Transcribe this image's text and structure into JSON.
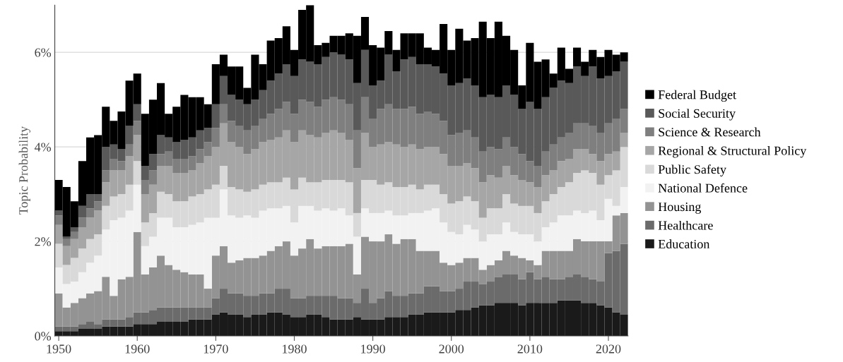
{
  "chart_data": {
    "type": "bar",
    "stacked": true,
    "ylabel": "Topic Probability",
    "legend": "right",
    "grid": "y",
    "x": [
      1950,
      1951,
      1952,
      1953,
      1954,
      1955,
      1956,
      1957,
      1958,
      1959,
      1960,
      1961,
      1962,
      1963,
      1964,
      1965,
      1966,
      1967,
      1968,
      1969,
      1970,
      1971,
      1972,
      1973,
      1974,
      1975,
      1976,
      1977,
      1978,
      1979,
      1980,
      1981,
      1982,
      1983,
      1984,
      1985,
      1986,
      1987,
      1988,
      1989,
      1990,
      1991,
      1992,
      1993,
      1994,
      1995,
      1996,
      1997,
      1998,
      1999,
      2000,
      2001,
      2002,
      2003,
      2004,
      2005,
      2006,
      2007,
      2008,
      2009,
      2010,
      2011,
      2012,
      2013,
      2014,
      2015,
      2016,
      2017,
      2018,
      2019,
      2020,
      2021,
      2022
    ],
    "xlim": [
      1949.5,
      2022.5
    ],
    "xticks": [
      1950,
      1960,
      1970,
      1980,
      1990,
      2000,
      2010,
      2020
    ],
    "ylim": [
      0,
      7
    ],
    "yticks": [
      {
        "value": 0,
        "label": "0%"
      },
      {
        "value": 2,
        "label": "2%"
      },
      {
        "value": 4,
        "label": "4%"
      },
      {
        "value": 6,
        "label": "6%"
      }
    ],
    "series": [
      {
        "name": "Education",
        "color": "#1a1a1a",
        "values": [
          0.1,
          0.1,
          0.1,
          0.15,
          0.15,
          0.15,
          0.2,
          0.2,
          0.2,
          0.2,
          0.25,
          0.25,
          0.25,
          0.3,
          0.3,
          0.3,
          0.3,
          0.35,
          0.35,
          0.35,
          0.45,
          0.5,
          0.45,
          0.45,
          0.4,
          0.45,
          0.45,
          0.5,
          0.5,
          0.45,
          0.4,
          0.4,
          0.45,
          0.45,
          0.4,
          0.35,
          0.35,
          0.35,
          0.4,
          0.35,
          0.35,
          0.35,
          0.4,
          0.4,
          0.4,
          0.45,
          0.45,
          0.5,
          0.5,
          0.5,
          0.5,
          0.55,
          0.55,
          0.6,
          0.65,
          0.65,
          0.7,
          0.7,
          0.7,
          0.65,
          0.7,
          0.7,
          0.7,
          0.7,
          0.75,
          0.75,
          0.75,
          0.7,
          0.7,
          0.65,
          0.6,
          0.5,
          0.45
        ]
      },
      {
        "name": "Healthcare",
        "color": "#6b6b6b",
        "values": [
          0.1,
          0.1,
          0.1,
          0.1,
          0.15,
          0.1,
          0.15,
          0.15,
          0.15,
          0.2,
          0.25,
          0.25,
          0.3,
          0.3,
          0.3,
          0.3,
          0.3,
          0.25,
          0.25,
          0.25,
          0.35,
          0.5,
          0.45,
          0.45,
          0.45,
          0.4,
          0.45,
          0.4,
          0.5,
          0.55,
          0.4,
          0.4,
          0.4,
          0.4,
          0.45,
          0.5,
          0.45,
          0.45,
          0.3,
          0.65,
          0.35,
          0.45,
          0.55,
          0.45,
          0.45,
          0.45,
          0.45,
          0.55,
          0.55,
          0.45,
          0.45,
          0.45,
          0.6,
          0.55,
          0.45,
          0.5,
          0.55,
          0.6,
          0.6,
          0.55,
          0.65,
          0.5,
          0.55,
          0.5,
          0.45,
          0.5,
          0.55,
          0.55,
          0.5,
          0.5,
          1.15,
          1.3,
          1.5
        ]
      },
      {
        "name": "Housing",
        "color": "#939393",
        "values": [
          0.7,
          0.4,
          0.5,
          0.55,
          0.6,
          0.7,
          0.9,
          0.5,
          0.85,
          0.85,
          1.7,
          0.8,
          0.9,
          1.1,
          0.9,
          0.8,
          0.75,
          0.7,
          0.7,
          0.4,
          0.9,
          0.9,
          0.65,
          0.7,
          0.8,
          0.8,
          0.8,
          0.9,
          0.9,
          1.0,
          0.9,
          1.05,
          1.2,
          1.0,
          1.05,
          1.05,
          1.1,
          1.15,
          0.6,
          1.1,
          1.3,
          1.2,
          1.2,
          1.1,
          1.2,
          1.15,
          0.9,
          0.75,
          0.75,
          0.6,
          0.55,
          0.55,
          0.5,
          0.5,
          0.3,
          0.35,
          0.35,
          0.5,
          0.4,
          0.45,
          0.25,
          0.3,
          0.55,
          0.6,
          0.6,
          0.55,
          0.75,
          0.75,
          0.8,
          0.85,
          0.25,
          0.75,
          0.65
        ]
      },
      {
        "name": "National Defence",
        "color": "#f2f2f2",
        "values": [
          0.55,
          0.5,
          0.45,
          0.55,
          0.65,
          0.75,
          1.0,
          1.6,
          1.3,
          1.4,
          1.0,
          0.6,
          0.65,
          0.8,
          1.0,
          0.9,
          0.95,
          1.05,
          1.1,
          1.5,
          0.8,
          1.2,
          1.0,
          0.9,
          0.9,
          0.85,
          0.95,
          0.9,
          0.8,
          0.75,
          0.7,
          0.9,
          0.7,
          0.8,
          0.8,
          0.75,
          0.8,
          0.6,
          0.8,
          0.6,
          0.6,
          0.6,
          0.5,
          0.6,
          0.5,
          0.55,
          0.8,
          0.85,
          0.9,
          0.85,
          0.7,
          0.6,
          0.7,
          0.6,
          0.6,
          0.65,
          0.55,
          0.6,
          0.5,
          0.5,
          0.55,
          0.5,
          0.5,
          0.6,
          0.75,
          0.75,
          0.6,
          0.6,
          0.65,
          0.45,
          0.9,
          0.2,
          0.55
        ]
      },
      {
        "name": "Public Safety",
        "color": "#d9d9d9",
        "values": [
          0.5,
          0.4,
          0.5,
          0.5,
          0.5,
          0.45,
          0.5,
          0.5,
          0.5,
          0.55,
          0.5,
          0.5,
          0.5,
          0.55,
          0.5,
          0.55,
          0.55,
          0.6,
          0.6,
          0.6,
          0.7,
          0.5,
          0.6,
          0.6,
          0.5,
          0.6,
          0.55,
          0.55,
          0.55,
          0.6,
          0.7,
          0.6,
          0.5,
          0.6,
          0.6,
          0.65,
          0.6,
          0.7,
          0.5,
          0.6,
          0.7,
          0.6,
          0.6,
          0.6,
          0.6,
          0.6,
          0.5,
          0.55,
          0.5,
          0.6,
          0.6,
          0.7,
          0.6,
          0.6,
          0.5,
          0.55,
          0.55,
          0.6,
          0.6,
          0.6,
          0.6,
          0.6,
          0.55,
          0.6,
          0.6,
          0.7,
          0.8,
          0.9,
          0.8,
          0.75,
          0.5,
          0.75,
          0.85
        ]
      },
      {
        "name": "Regional & Structural Policy",
        "color": "#a6a6a6",
        "values": [
          0.4,
          0.4,
          0.4,
          0.45,
          0.45,
          0.5,
          0.5,
          0.55,
          0.5,
          0.6,
          0.55,
          0.6,
          0.6,
          0.55,
          0.6,
          0.6,
          0.6,
          0.55,
          0.65,
          0.7,
          0.8,
          0.9,
          0.95,
          0.9,
          0.8,
          0.85,
          0.9,
          0.9,
          0.95,
          1.0,
          1.0,
          1.0,
          1.0,
          0.95,
          1.0,
          1.05,
          1.0,
          0.9,
          0.95,
          1.0,
          0.7,
          0.85,
          0.85,
          0.9,
          0.85,
          0.85,
          0.85,
          0.8,
          0.8,
          0.85,
          0.8,
          0.75,
          0.7,
          0.7,
          0.75,
          0.7,
          0.65,
          0.6,
          0.6,
          0.55,
          0.5,
          0.55,
          0.55,
          0.5,
          0.55,
          0.5,
          0.5,
          0.45,
          0.4,
          0.5,
          0.45,
          0.4,
          0.3
        ]
      },
      {
        "name": "Science & Research",
        "color": "#7f7f7f",
        "values": [
          0.2,
          0.15,
          0.15,
          0.2,
          0.2,
          0.2,
          0.25,
          0.25,
          0.2,
          0.25,
          0.3,
          0.3,
          0.3,
          0.25,
          0.3,
          0.3,
          0.3,
          0.3,
          0.3,
          0.3,
          0.4,
          0.4,
          0.45,
          0.45,
          0.5,
          0.5,
          0.5,
          0.55,
          0.6,
          0.6,
          0.6,
          0.65,
          0.7,
          0.65,
          0.7,
          0.7,
          0.7,
          0.75,
          0.8,
          0.75,
          0.6,
          0.75,
          0.8,
          0.75,
          0.8,
          0.8,
          0.75,
          0.75,
          0.7,
          0.7,
          0.65,
          0.7,
          0.7,
          0.65,
          0.65,
          0.6,
          0.6,
          0.6,
          0.6,
          0.55,
          0.45,
          0.45,
          0.5,
          0.55,
          0.5,
          0.55,
          0.55,
          0.55,
          0.6,
          0.6,
          0.65,
          0.7,
          0.5
        ]
      },
      {
        "name": "Social Security",
        "color": "#595959",
        "values": [
          0.1,
          0.05,
          0.1,
          0.25,
          0.3,
          0.15,
          0.5,
          0.3,
          0.25,
          0.4,
          0.35,
          0.3,
          0.35,
          0.4,
          0.3,
          0.35,
          0.4,
          0.4,
          0.4,
          0.3,
          0.5,
          0.6,
          0.55,
          0.55,
          0.55,
          0.55,
          0.6,
          0.7,
          0.75,
          0.8,
          0.8,
          0.85,
          0.85,
          0.9,
          0.9,
          0.95,
          0.95,
          0.95,
          1.0,
          1.0,
          0.7,
          0.6,
          1.05,
          0.8,
          1.05,
          1.05,
          1.05,
          1.0,
          1.0,
          1.0,
          1.05,
          1.05,
          1.1,
          1.1,
          1.15,
          1.1,
          1.1,
          1.1,
          1.1,
          0.95,
          1.25,
          1.2,
          1.15,
          1.2,
          1.2,
          1.05,
          1.2,
          1.0,
          1.25,
          1.15,
          1.0,
          1.0,
          1.0
        ]
      },
      {
        "name": "Federal Budget",
        "color": "#000000",
        "values": [
          0.65,
          1.05,
          0.55,
          0.95,
          1.2,
          1.25,
          0.85,
          0.5,
          0.8,
          0.95,
          0.65,
          1.1,
          1.15,
          1.1,
          0.5,
          0.75,
          0.95,
          0.85,
          0.7,
          0.5,
          0.85,
          0.45,
          0.6,
          0.7,
          0.35,
          0.95,
          0.55,
          0.85,
          0.75,
          0.8,
          0.55,
          1.05,
          1.2,
          0.4,
          0.3,
          0.35,
          0.4,
          0.55,
          1.0,
          0.7,
          0.85,
          0.7,
          0.5,
          0.45,
          0.55,
          0.5,
          0.65,
          0.35,
          0.35,
          1.05,
          0.75,
          1.15,
          0.8,
          1.0,
          1.6,
          1.2,
          1.6,
          1.05,
          0.95,
          0.5,
          1.25,
          1.0,
          0.8,
          0.3,
          0.7,
          0.3,
          0.4,
          0.3,
          0.35,
          0.45,
          0.55,
          0.35,
          0.2
        ]
      }
    ]
  }
}
